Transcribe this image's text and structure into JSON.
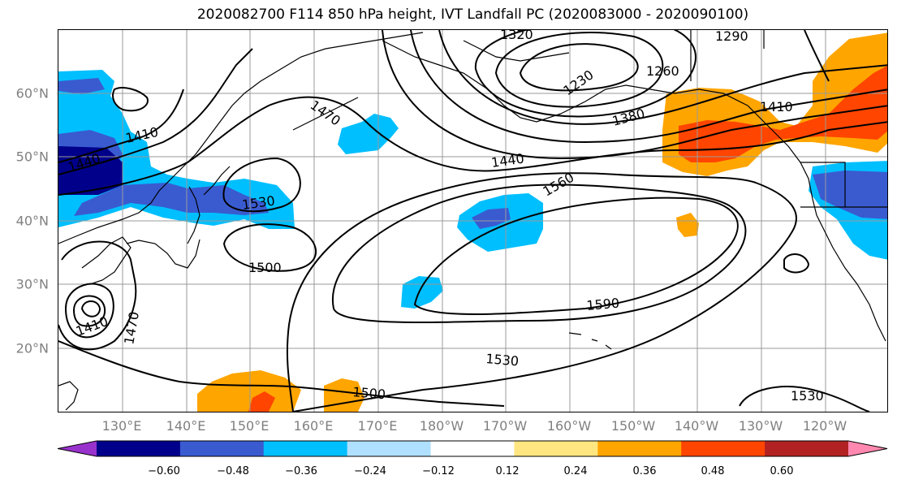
{
  "title": "2020082700 F114 850 hPa height, IVT Landfall PC (2020083000 - 2020090100)",
  "lat_labels": [
    "60°N",
    "50°N",
    "40°N",
    "30°N",
    "20°N"
  ],
  "lon_labels": [
    "130°E",
    "140°E",
    "150°E",
    "160°E",
    "170°E",
    "180°W",
    "170°W",
    "160°W",
    "150°W",
    "140°W",
    "130°W",
    "120°W"
  ],
  "contour_labels": [
    "1320",
    "1290",
    "1260",
    "1230",
    "1380",
    "1410",
    "1410",
    "1440",
    "1440",
    "1470",
    "1410",
    "1470",
    "1530",
    "1560",
    "1500",
    "1590",
    "1530",
    "1500",
    "1530"
  ],
  "colorbar": {
    "ticks": [
      "−0.60",
      "−0.48",
      "−0.36",
      "−0.24",
      "−0.12",
      "0.12",
      "0.24",
      "0.36",
      "0.48",
      "0.60"
    ],
    "colors": [
      "#9932cc",
      "#00008b",
      "#3a5bd0",
      "#00bfff",
      "#b0e0ff",
      "#ffffff",
      "#ffe680",
      "#ffa500",
      "#ff4500",
      "#b22222",
      "#ff88b0"
    ]
  }
}
